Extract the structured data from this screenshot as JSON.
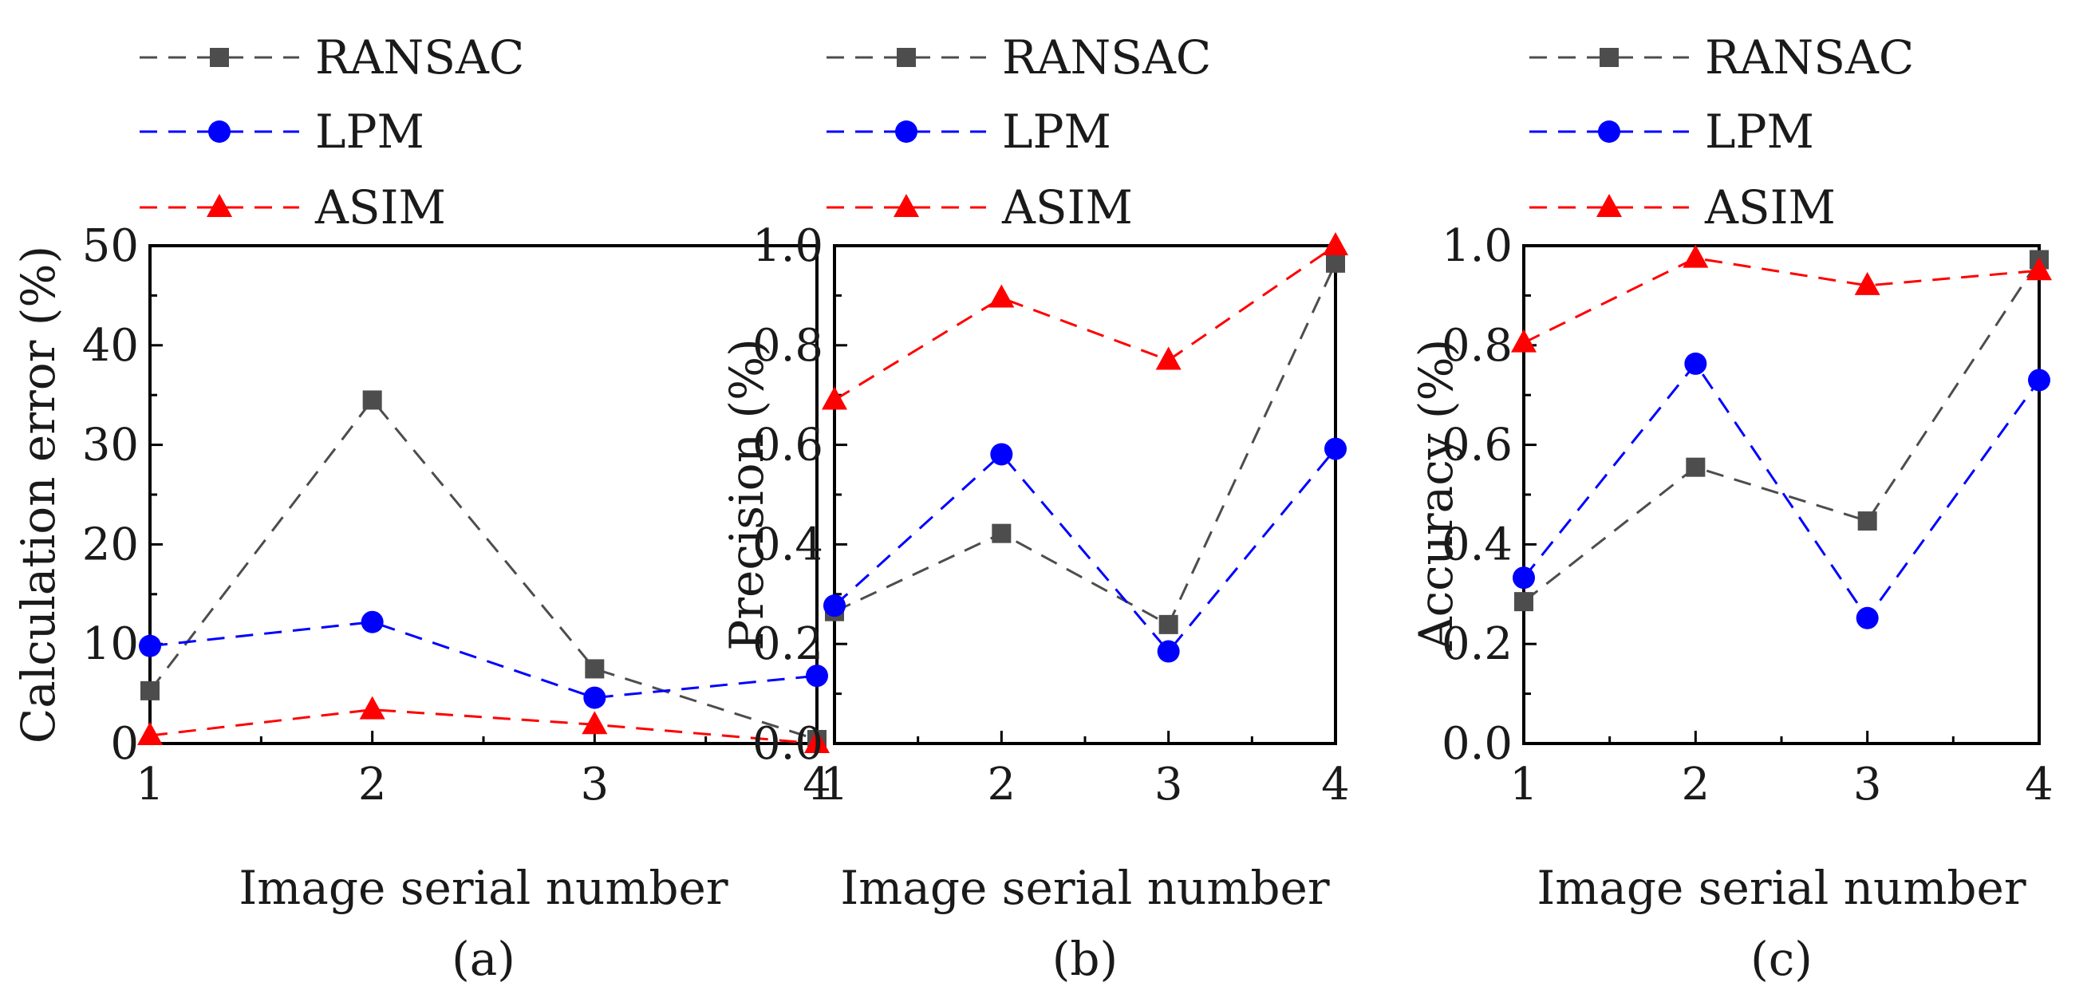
{
  "chart_data": [
    {
      "type": "line",
      "caption": "(a)",
      "xlabel": "Image serial number",
      "ylabel": "Calculation error (%)",
      "x": [
        1,
        2,
        3,
        4
      ],
      "xticks": [
        "1",
        "2",
        "3",
        "4"
      ],
      "yticks": [
        "0",
        "10",
        "20",
        "30",
        "40",
        "50"
      ],
      "ylim": [
        0,
        50
      ],
      "series": [
        {
          "name": "RANSAC",
          "color": "#4d4d4d",
          "marker": "square",
          "values": [
            5.3,
            34.5,
            7.5,
            0.4
          ]
        },
        {
          "name": "LPM",
          "color": "#0000ff",
          "marker": "circle",
          "values": [
            9.8,
            12.2,
            4.6,
            6.8
          ]
        },
        {
          "name": "ASIM",
          "color": "#ff0000",
          "marker": "triangle",
          "values": [
            0.8,
            3.4,
            1.9,
            0.0
          ]
        }
      ]
    },
    {
      "type": "line",
      "caption": "(b)",
      "xlabel": "Image serial number",
      "ylabel": "Precision (%)",
      "x": [
        1,
        2,
        3,
        4
      ],
      "xticks": [
        "1",
        "2",
        "3",
        "4"
      ],
      "yticks": [
        "0.0",
        "0.2",
        "0.4",
        "0.6",
        "0.8",
        "1.0"
      ],
      "ylim": [
        0,
        1
      ],
      "series": [
        {
          "name": "RANSAC",
          "color": "#4d4d4d",
          "marker": "square",
          "values": [
            0.265,
            0.422,
            0.239,
            0.965
          ]
        },
        {
          "name": "LPM",
          "color": "#0000ff",
          "marker": "circle",
          "values": [
            0.277,
            0.581,
            0.185,
            0.592
          ]
        },
        {
          "name": "ASIM",
          "color": "#ff0000",
          "marker": "triangle",
          "values": [
            0.69,
            0.895,
            0.77,
            1.0
          ]
        }
      ]
    },
    {
      "type": "line",
      "caption": "(c)",
      "xlabel": "Image serial number",
      "ylabel": "Accuracy (%)",
      "x": [
        1,
        2,
        3,
        4
      ],
      "xticks": [
        "1",
        "2",
        "3",
        "4"
      ],
      "yticks": [
        "0.0",
        "0.2",
        "0.4",
        "0.6",
        "0.8",
        "1.0"
      ],
      "ylim": [
        0,
        1
      ],
      "series": [
        {
          "name": "RANSAC",
          "color": "#4d4d4d",
          "marker": "square",
          "values": [
            0.285,
            0.555,
            0.447,
            0.972
          ]
        },
        {
          "name": "LPM",
          "color": "#0000ff",
          "marker": "circle",
          "values": [
            0.333,
            0.763,
            0.252,
            0.73
          ]
        },
        {
          "name": "ASIM",
          "color": "#ff0000",
          "marker": "triangle",
          "values": [
            0.805,
            0.975,
            0.92,
            0.95
          ]
        }
      ]
    }
  ]
}
